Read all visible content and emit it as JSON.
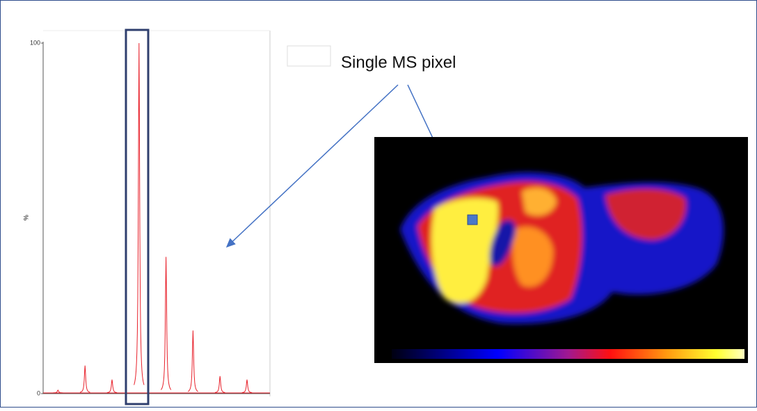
{
  "chart_data": {
    "type": "peaks",
    "y_label": "%",
    "x": [
      0.55,
      1.55,
      2.55,
      3.55,
      4.55,
      5.55,
      6.55,
      7.55
    ],
    "values": [
      1,
      8,
      4,
      100,
      39,
      18,
      5,
      4
    ],
    "color": "#e8212b",
    "xlim": [
      0,
      8.4
    ],
    "ylim": [
      0,
      100
    ],
    "yticks": [
      0,
      100
    ],
    "annotation": "Single MS pixel"
  }
}
